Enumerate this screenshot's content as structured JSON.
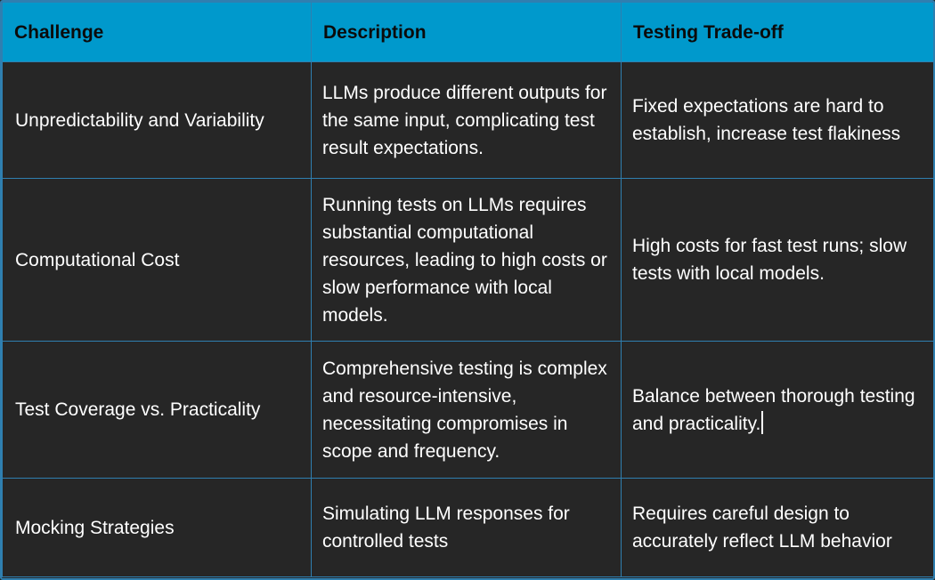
{
  "table": {
    "headers": [
      "Challenge",
      "Description",
      "Testing Trade-off"
    ],
    "rows": [
      {
        "challenge": "Unpredictability and Variability",
        "description": "LLMs produce different outputs for the same input, complicating test result expectations.",
        "tradeoff": "Fixed expectations are hard to establish, increase test flakiness"
      },
      {
        "challenge": "Computational Cost",
        "description": "Running tests on LLMs requires substantial computational resources, leading to high costs or slow performance with local models.",
        "tradeoff": "High costs for fast test runs; slow tests with local models."
      },
      {
        "challenge": "Test Coverage vs. Practicality",
        "description": "Comprehensive testing is complex and resource-intensive, necessitating compromises in scope and frequency.",
        "tradeoff": "Balance between thorough testing and practicality."
      },
      {
        "challenge": "Mocking Strategies",
        "description": "Simulating LLM responses for controlled tests",
        "tradeoff": "Requires careful design to accurately reflect LLM behavior"
      }
    ]
  },
  "colors": {
    "header_bg": "#0099cc",
    "cell_bg": "#262626",
    "border": "#2f7fb0",
    "text": "#ffffff",
    "header_text": "#0b0b0b"
  }
}
